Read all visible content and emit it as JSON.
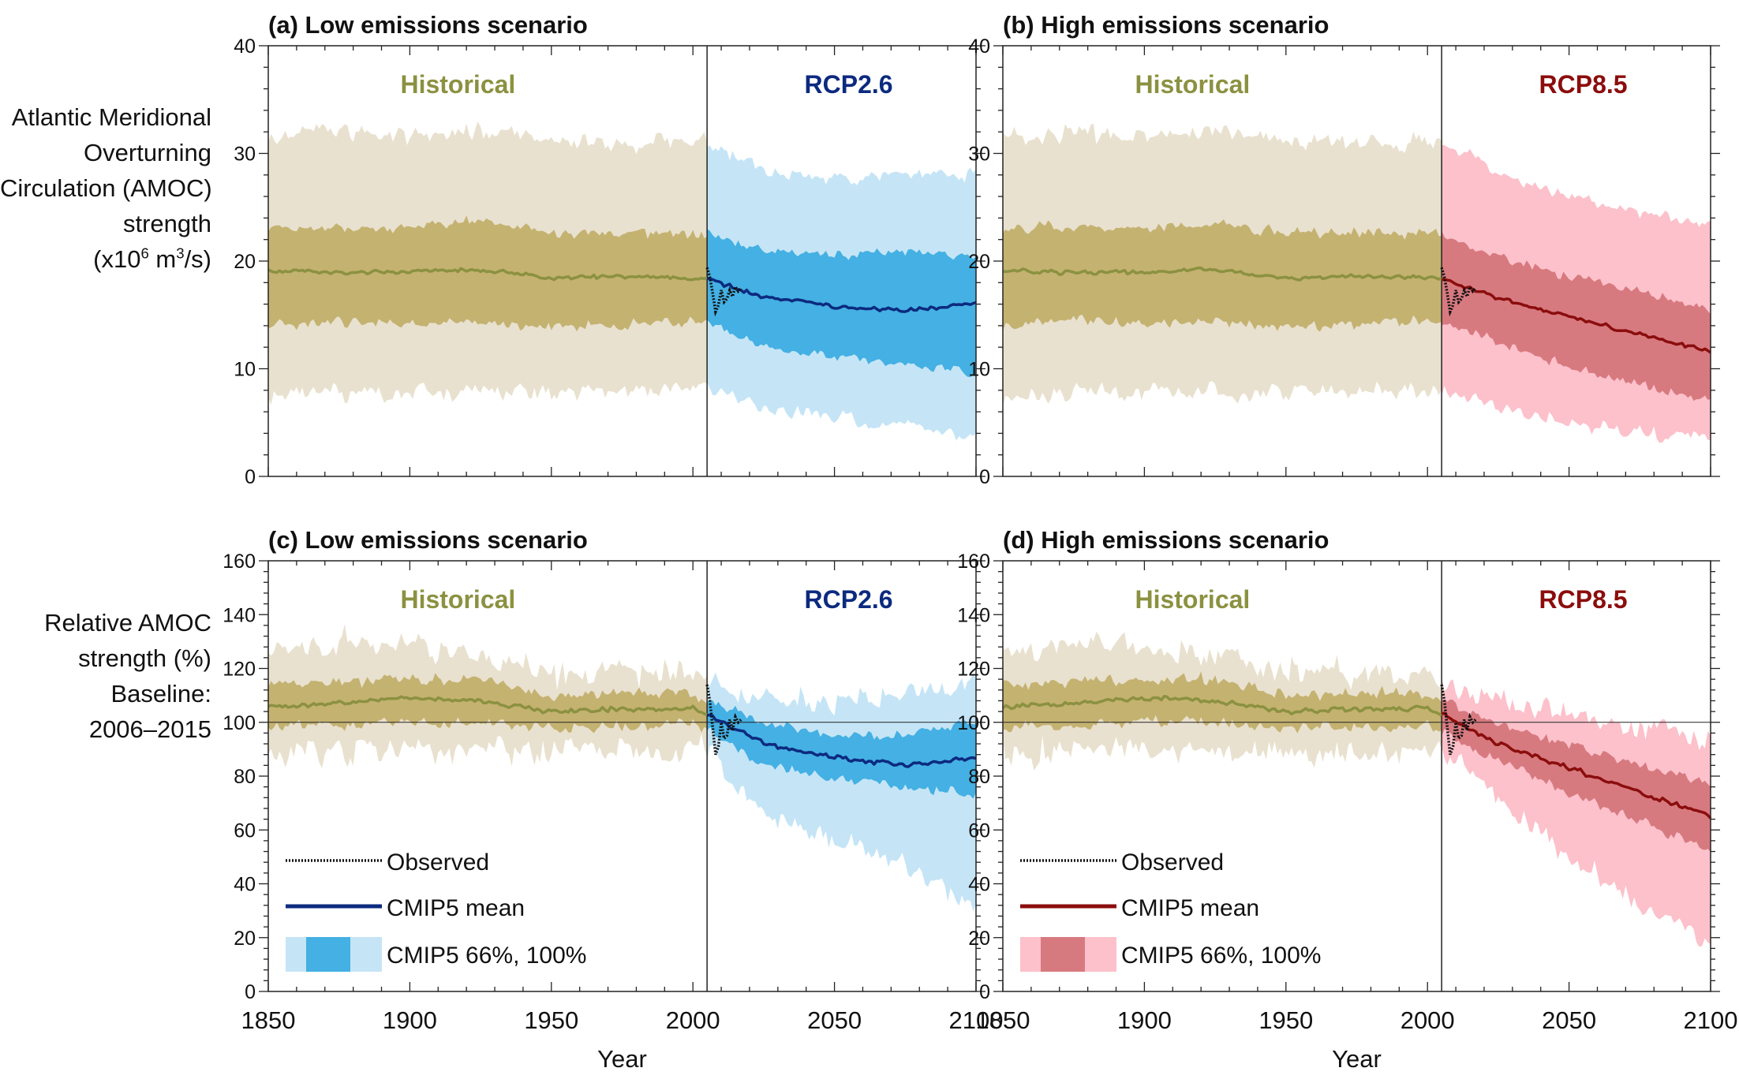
{
  "figure": {
    "ylabel_top": [
      "Atlantic Meridional",
      "Overturning",
      "Circulation (AMOC)",
      "strength"
    ],
    "ylabel_top_units_prefix": "(x10",
    "ylabel_top_units_exp1": "6",
    "ylabel_top_units_mid": " m",
    "ylabel_top_units_exp2": "3",
    "ylabel_top_units_suffix": "/s)",
    "ylabel_bottom": [
      "Relative AMOC",
      "strength (%)",
      "Baseline:",
      "2006–2015"
    ],
    "xlabel": "Year",
    "period_historical": "Historical",
    "colors": {
      "historical_mean": "#8b9140",
      "historical_band66": "#c4b271",
      "historical_band100": "#e9e1cf",
      "rcp26_mean": "#0c2a7f",
      "rcp26_band66": "#44b0e3",
      "rcp26_band100": "#c5e5f6",
      "rcp85_mean": "#8b0d0d",
      "rcp85_band66": "#d77a80",
      "rcp85_band100": "#fcc1cb",
      "observed": "#111111",
      "rcp26_label": "#0c2a7f",
      "rcp85_label": "#8b0d0d",
      "historical_label": "#8b9140"
    }
  },
  "chart_data": [
    {
      "panel": "a",
      "type": "area",
      "title": "(a) Low emissions scenario",
      "scenario": "RCP2.6",
      "xlim": [
        1850,
        2100
      ],
      "ylim": [
        0,
        40
      ],
      "xticks": [
        1850,
        1900,
        1950,
        2000,
        2050,
        2100
      ],
      "yticks": [
        0,
        10,
        20,
        30,
        40
      ],
      "x_scenario_start": 2005,
      "series": [
        {
          "name": "CMIP5 mean",
          "x": [
            1850,
            1875,
            1900,
            1925,
            1950,
            1975,
            2000,
            2005,
            2025,
            2050,
            2075,
            2100
          ],
          "values": [
            19.1,
            18.9,
            19.0,
            19.2,
            18.4,
            18.6,
            18.4,
            18.4,
            16.6,
            15.8,
            15.4,
            16.0
          ]
        },
        {
          "name": "CMIP5 66%",
          "x": [
            1850,
            1875,
            1900,
            1925,
            1950,
            1975,
            2000,
            2005,
            2025,
            2050,
            2075,
            2100
          ],
          "low": [
            14.0,
            14.5,
            14.2,
            14.4,
            13.9,
            14.1,
            14.5,
            14.5,
            12.0,
            11.2,
            10.5,
            9.5
          ],
          "high": [
            23.0,
            23.2,
            23.0,
            23.8,
            22.5,
            22.7,
            22.5,
            22.5,
            21.0,
            20.5,
            20.8,
            20.3
          ]
        },
        {
          "name": "CMIP5 100%",
          "x": [
            1850,
            1875,
            1900,
            1925,
            1950,
            1975,
            2000,
            2005,
            2025,
            2050,
            2075,
            2100
          ],
          "low": [
            7.5,
            7.8,
            7.8,
            7.9,
            7.7,
            7.9,
            8.0,
            8.0,
            6.5,
            5.5,
            4.8,
            3.5
          ],
          "high": [
            31.5,
            32.0,
            31.5,
            32.0,
            31.0,
            31.0,
            31.0,
            31.0,
            28.5,
            27.5,
            28.0,
            28.0
          ]
        },
        {
          "name": "Observed",
          "x": [
            2005,
            2006,
            2007,
            2008,
            2009,
            2010,
            2011,
            2012,
            2013,
            2014,
            2015,
            2016,
            2017
          ],
          "values": [
            19.4,
            18.5,
            17.0,
            15.3,
            15.9,
            17.3,
            16.2,
            16.5,
            17.3,
            16.7,
            17.6,
            17.2,
            17.5
          ]
        }
      ]
    },
    {
      "panel": "b",
      "type": "area",
      "title": "(b) High emissions scenario",
      "scenario": "RCP8.5",
      "xlim": [
        1850,
        2100
      ],
      "ylim": [
        0,
        40
      ],
      "xticks": [
        1850,
        1900,
        1950,
        2000,
        2050,
        2100
      ],
      "yticks": [
        0,
        10,
        20,
        30,
        40
      ],
      "x_scenario_start": 2005,
      "series": [
        {
          "name": "CMIP5 mean",
          "x": [
            1850,
            1875,
            1900,
            1925,
            1950,
            1975,
            2000,
            2005,
            2025,
            2050,
            2075,
            2100
          ],
          "values": [
            19.1,
            18.9,
            19.0,
            19.2,
            18.4,
            18.6,
            18.4,
            18.4,
            16.6,
            14.9,
            13.2,
            11.6
          ]
        },
        {
          "name": "CMIP5 66%",
          "x": [
            1850,
            1875,
            1900,
            1925,
            1950,
            1975,
            2000,
            2005,
            2025,
            2050,
            2075,
            2100
          ],
          "low": [
            14.0,
            14.5,
            14.2,
            14.4,
            13.9,
            14.1,
            14.5,
            14.5,
            12.5,
            10.2,
            8.5,
            7.0
          ],
          "high": [
            23.0,
            23.2,
            23.0,
            23.8,
            22.5,
            22.7,
            22.5,
            22.5,
            20.5,
            18.5,
            17.2,
            15.5
          ]
        },
        {
          "name": "CMIP5 100%",
          "x": [
            1850,
            1875,
            1900,
            1925,
            1950,
            1975,
            2000,
            2005,
            2025,
            2050,
            2075,
            2100
          ],
          "low": [
            7.5,
            7.8,
            7.8,
            7.9,
            7.7,
            7.9,
            8.0,
            8.0,
            6.5,
            5.0,
            4.0,
            3.5
          ],
          "high": [
            31.5,
            32.0,
            31.5,
            32.0,
            31.0,
            31.0,
            31.0,
            31.0,
            28.5,
            26.0,
            24.5,
            23.5
          ]
        },
        {
          "name": "Observed",
          "x": [
            2005,
            2006,
            2007,
            2008,
            2009,
            2010,
            2011,
            2012,
            2013,
            2014,
            2015,
            2016,
            2017
          ],
          "values": [
            19.4,
            18.5,
            17.0,
            15.3,
            15.9,
            17.3,
            16.2,
            16.5,
            17.3,
            16.7,
            17.6,
            17.2,
            17.5
          ]
        }
      ]
    },
    {
      "panel": "c",
      "type": "area",
      "title": "(c) Low emissions scenario",
      "scenario": "RCP2.6",
      "xlim": [
        1850,
        2100
      ],
      "ylim": [
        0,
        160
      ],
      "xticks": [
        1850,
        1900,
        1950,
        2000,
        2050,
        2100
      ],
      "yticks": [
        0,
        20,
        40,
        60,
        80,
        100,
        120,
        140,
        160
      ],
      "x_scenario_start": 2005,
      "baseline": 100,
      "series": [
        {
          "name": "CMIP5 mean",
          "x": [
            1850,
            1875,
            1900,
            1925,
            1950,
            1975,
            2000,
            2005,
            2025,
            2050,
            2075,
            2100
          ],
          "values": [
            106,
            107,
            109,
            108,
            104,
            105,
            105,
            103,
            92,
            87,
            84,
            87
          ]
        },
        {
          "name": "CMIP5 66%",
          "x": [
            1850,
            1875,
            1900,
            1925,
            1950,
            1975,
            2000,
            2005,
            2025,
            2050,
            2075,
            2100
          ],
          "low": [
            98,
            99,
            100,
            100,
            98,
            98,
            99,
            97,
            84,
            79,
            76,
            73
          ],
          "high": [
            114,
            115,
            116,
            116,
            110,
            111,
            111,
            108,
            100,
            95,
            95,
            100
          ]
        },
        {
          "name": "CMIP5 100%",
          "x": [
            1850,
            1875,
            1900,
            1925,
            1950,
            1975,
            2000,
            2005,
            2025,
            2050,
            2075,
            2100
          ],
          "low": [
            88,
            89,
            90,
            90,
            89,
            89,
            90,
            90,
            66,
            56,
            46,
            33
          ],
          "high": [
            125,
            130,
            128,
            125,
            118,
            119,
            118,
            115,
            110,
            107,
            110,
            115
          ]
        },
        {
          "name": "Observed",
          "x": [
            2005,
            2006,
            2007,
            2008,
            2009,
            2010,
            2011,
            2012,
            2013,
            2014,
            2015,
            2016,
            2017
          ],
          "values": [
            114,
            108,
            98,
            88,
            91,
            100,
            94,
            95,
            101,
            97,
            102,
            100,
            101
          ]
        }
      ]
    },
    {
      "panel": "d",
      "type": "area",
      "title": "(d) High emissions scenario",
      "scenario": "RCP8.5",
      "xlim": [
        1850,
        2100
      ],
      "ylim": [
        0,
        160
      ],
      "xticks": [
        1850,
        1900,
        1950,
        2000,
        2050,
        2100
      ],
      "yticks": [
        0,
        20,
        40,
        60,
        80,
        100,
        120,
        140,
        160
      ],
      "x_scenario_start": 2005,
      "baseline": 100,
      "series": [
        {
          "name": "CMIP5 mean",
          "x": [
            1850,
            1875,
            1900,
            1925,
            1950,
            1975,
            2000,
            2005,
            2025,
            2050,
            2075,
            2100
          ],
          "values": [
            106,
            107,
            109,
            108,
            104,
            105,
            105,
            103,
            92,
            83,
            74,
            65
          ]
        },
        {
          "name": "CMIP5 66%",
          "x": [
            1850,
            1875,
            1900,
            1925,
            1950,
            1975,
            2000,
            2005,
            2025,
            2050,
            2075,
            2100
          ],
          "low": [
            98,
            99,
            100,
            100,
            98,
            98,
            99,
            97,
            86,
            74,
            63,
            53
          ],
          "high": [
            114,
            115,
            116,
            116,
            110,
            111,
            111,
            108,
            100,
            92,
            84,
            77
          ]
        },
        {
          "name": "CMIP5 100%",
          "x": [
            1850,
            1875,
            1900,
            1925,
            1950,
            1975,
            2000,
            2005,
            2025,
            2050,
            2075,
            2100
          ],
          "low": [
            88,
            89,
            90,
            90,
            89,
            89,
            90,
            90,
            70,
            50,
            32,
            18
          ],
          "high": [
            125,
            130,
            128,
            125,
            118,
            119,
            118,
            115,
            108,
            104,
            98,
            94
          ]
        },
        {
          "name": "Observed",
          "x": [
            2005,
            2006,
            2007,
            2008,
            2009,
            2010,
            2011,
            2012,
            2013,
            2014,
            2015,
            2016,
            2017
          ],
          "values": [
            114,
            108,
            98,
            88,
            91,
            100,
            94,
            95,
            101,
            97,
            102,
            100,
            101
          ]
        }
      ]
    }
  ],
  "legends": [
    {
      "panel": "c",
      "observed": "Observed",
      "mean": "CMIP5 mean",
      "bands": "CMIP5 66%, 100%"
    },
    {
      "panel": "d",
      "observed": "Observed",
      "mean": "CMIP5 mean",
      "bands": "CMIP5 66%, 100%"
    }
  ]
}
